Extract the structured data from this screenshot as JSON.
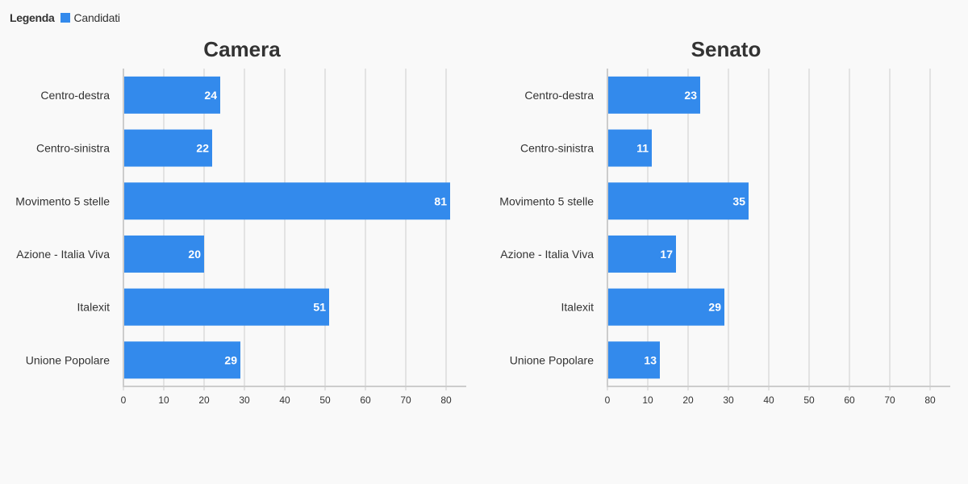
{
  "legend": {
    "title": "Legenda",
    "items": [
      {
        "label": "Candidati",
        "color": "#338aec"
      }
    ]
  },
  "chart_data": [
    {
      "type": "bar",
      "orientation": "horizontal",
      "title": "Camera",
      "categories": [
        "Centro-destra",
        "Centro-sinistra",
        "Movimento 5 stelle",
        "Azione - Italia Viva",
        "Italexit",
        "Unione Popolare"
      ],
      "series": [
        {
          "name": "Candidati",
          "values": [
            24,
            22,
            81,
            20,
            51,
            29
          ],
          "color": "#338aec"
        }
      ],
      "xlim": [
        0,
        85
      ],
      "xticks": [
        0,
        10,
        20,
        30,
        40,
        50,
        60,
        70,
        80
      ],
      "grid": true,
      "data_labels": true
    },
    {
      "type": "bar",
      "orientation": "horizontal",
      "title": "Senato",
      "categories": [
        "Centro-destra",
        "Centro-sinistra",
        "Movimento 5 stelle",
        "Azione - Italia Viva",
        "Italexit",
        "Unione Popolare"
      ],
      "series": [
        {
          "name": "Candidati",
          "values": [
            23,
            11,
            35,
            17,
            29,
            13
          ],
          "color": "#338aec"
        }
      ],
      "xlim": [
        0,
        85
      ],
      "xticks": [
        0,
        10,
        20,
        30,
        40,
        50,
        60,
        70,
        80
      ],
      "grid": true,
      "data_labels": true
    }
  ]
}
